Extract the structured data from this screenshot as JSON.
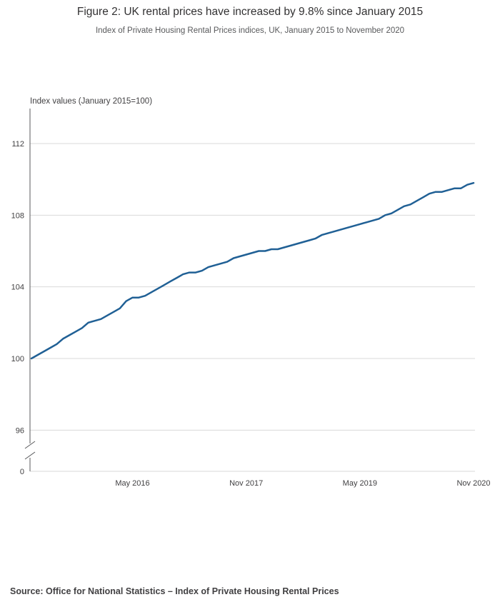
{
  "header": {
    "title": "Figure 2: UK rental prices have increased by 9.8% since January 2015",
    "subtitle": "Index of Private Housing Rental Prices indices, UK, January 2015 to November 2020"
  },
  "source": {
    "text": "Source: Office for National Statistics – Index of Private Housing Rental Prices"
  },
  "chart_data": {
    "type": "line",
    "title": "Figure 2: UK rental prices have increased by 9.8% since January 2015",
    "subtitle": "Index of Private Housing Rental Prices indices, UK, January 2015 to November 2020",
    "ylabel": "Index values (January 2015=100)",
    "xlabel": "",
    "grid": "horizontal",
    "legend": "none",
    "line_color": "#206095",
    "grid_color": "#d9d9d9",
    "axis_color": "#58595b",
    "tick_label_color": "#414042",
    "y_axis_break": true,
    "y_plot_range": [
      96,
      113.2
    ],
    "y_ticks": [
      0,
      96,
      100,
      104,
      108,
      112
    ],
    "x_ticks": [
      {
        "label": "May 2016",
        "month_index": 16
      },
      {
        "label": "Nov 2017",
        "month_index": 34
      },
      {
        "label": "May 2019",
        "month_index": 52
      },
      {
        "label": "Nov 2020",
        "month_index": 70
      }
    ],
    "months": [
      "2015-01",
      "2015-02",
      "2015-03",
      "2015-04",
      "2015-05",
      "2015-06",
      "2015-07",
      "2015-08",
      "2015-09",
      "2015-10",
      "2015-11",
      "2015-12",
      "2016-01",
      "2016-02",
      "2016-03",
      "2016-04",
      "2016-05",
      "2016-06",
      "2016-07",
      "2016-08",
      "2016-09",
      "2016-10",
      "2016-11",
      "2016-12",
      "2017-01",
      "2017-02",
      "2017-03",
      "2017-04",
      "2017-05",
      "2017-06",
      "2017-07",
      "2017-08",
      "2017-09",
      "2017-10",
      "2017-11",
      "2017-12",
      "2018-01",
      "2018-02",
      "2018-03",
      "2018-04",
      "2018-05",
      "2018-06",
      "2018-07",
      "2018-08",
      "2018-09",
      "2018-10",
      "2018-11",
      "2018-12",
      "2019-01",
      "2019-02",
      "2019-03",
      "2019-04",
      "2019-05",
      "2019-06",
      "2019-07",
      "2019-08",
      "2019-09",
      "2019-10",
      "2019-11",
      "2019-12",
      "2020-01",
      "2020-02",
      "2020-03",
      "2020-04",
      "2020-05",
      "2020-06",
      "2020-07",
      "2020-08",
      "2020-09",
      "2020-10",
      "2020-11"
    ],
    "series": [
      {
        "name": "Index of Private Housing Rental Prices (UK)",
        "values": [
          100.0,
          100.2,
          100.4,
          100.6,
          100.8,
          101.1,
          101.3,
          101.5,
          101.7,
          102.0,
          102.1,
          102.2,
          102.4,
          102.6,
          102.8,
          103.2,
          103.4,
          103.4,
          103.5,
          103.7,
          103.9,
          104.1,
          104.3,
          104.5,
          104.7,
          104.8,
          104.8,
          104.9,
          105.1,
          105.2,
          105.3,
          105.4,
          105.6,
          105.7,
          105.8,
          105.9,
          106.0,
          106.0,
          106.1,
          106.1,
          106.2,
          106.3,
          106.4,
          106.5,
          106.6,
          106.7,
          106.9,
          107.0,
          107.1,
          107.2,
          107.3,
          107.4,
          107.5,
          107.6,
          107.7,
          107.8,
          108.0,
          108.1,
          108.3,
          108.5,
          108.6,
          108.8,
          109.0,
          109.2,
          109.3,
          109.3,
          109.4,
          109.5,
          109.5,
          109.7,
          109.8
        ]
      }
    ]
  }
}
